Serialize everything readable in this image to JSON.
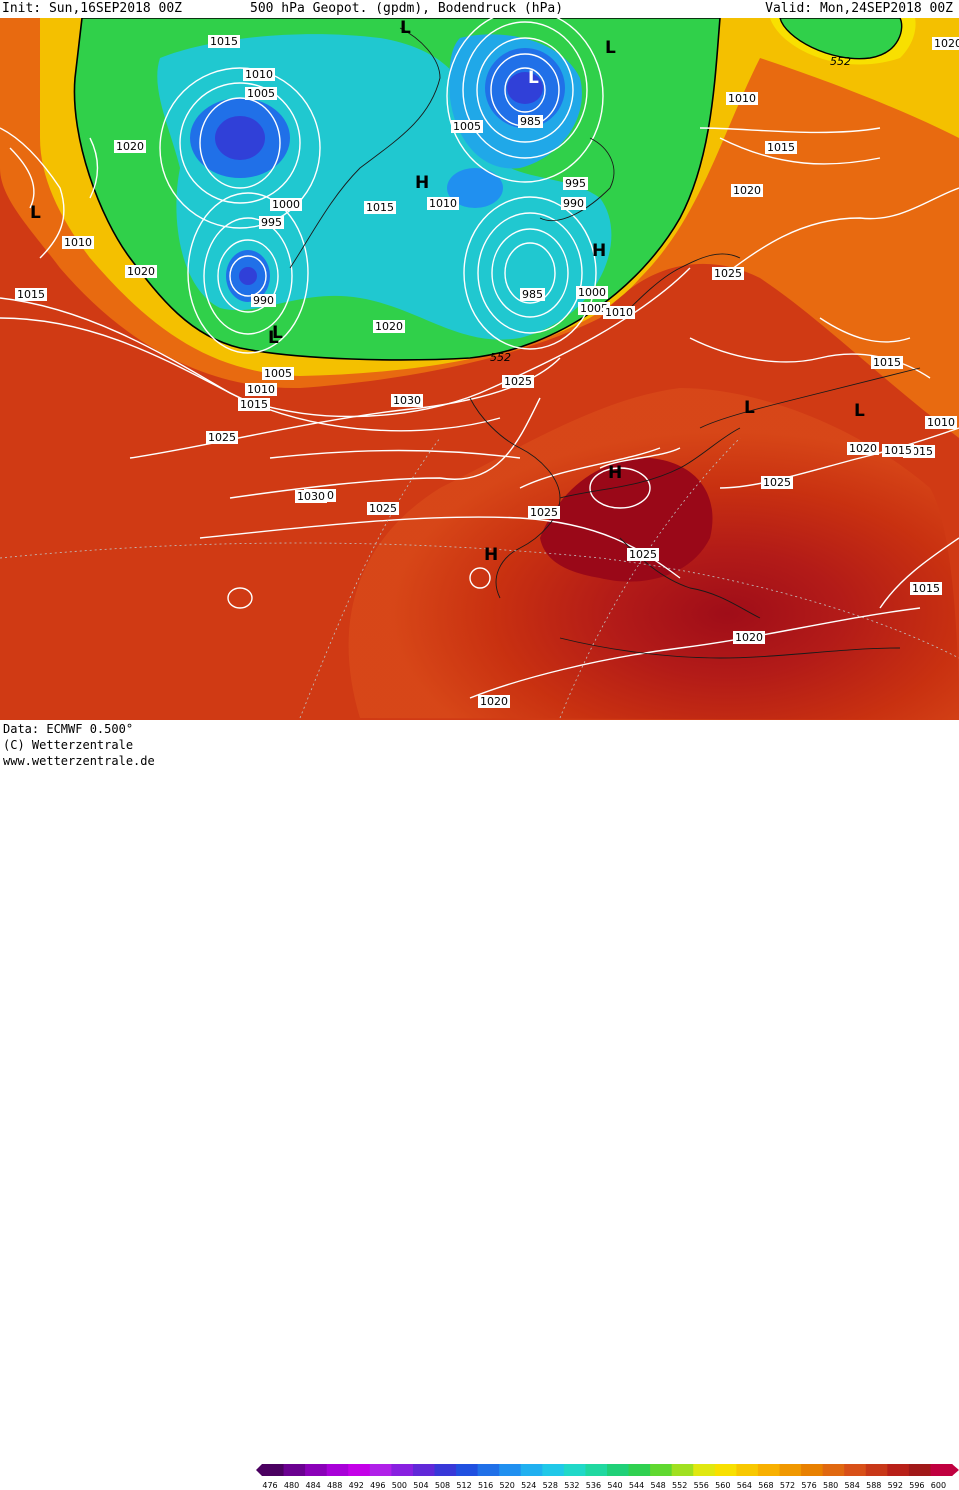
{
  "header": {
    "init": "Init: Sun,16SEP2018 00Z",
    "title": "500 hPa Geopot. (gpdm), Bodendruck (hPa)",
    "valid": "Valid: Mon,24SEP2018 00Z"
  },
  "footer": {
    "data": "Data: ECMWF  0.500°",
    "copyright": "(C) Wetterzentrale",
    "url": "www.wetterzentrale.de"
  },
  "colorbar": {
    "ticks": [
      "476",
      "480",
      "484",
      "488",
      "492",
      "496",
      "500",
      "504",
      "508",
      "512",
      "516",
      "520",
      "524",
      "528",
      "532",
      "536",
      "540",
      "544",
      "548",
      "552",
      "556",
      "560",
      "564",
      "568",
      "572",
      "576",
      "580",
      "584",
      "588",
      "592",
      "596",
      "600"
    ],
    "colors": [
      "#4a0060",
      "#6a0090",
      "#8a00b8",
      "#a800d8",
      "#c400e8",
      "#b020e8",
      "#8820e0",
      "#6028d8",
      "#3838d8",
      "#2050e0",
      "#2070e8",
      "#2090f0",
      "#20b0f0",
      "#20c8e8",
      "#20d8c8",
      "#20d8a0",
      "#20d078",
      "#30d050",
      "#60d830",
      "#a0e020",
      "#e0e810",
      "#f8e000",
      "#f8c800",
      "#f8b000",
      "#f09800",
      "#e88000",
      "#e06810",
      "#d85018",
      "#c83818",
      "#b82018",
      "#a01818",
      "#c00040"
    ]
  },
  "map": {
    "isobar_labels": [
      "1015",
      "1010",
      "1005",
      "1000",
      "995",
      "990",
      "985",
      "1020",
      "1025",
      "1030",
      "995",
      "990",
      "985",
      "1005",
      "1010",
      "1015",
      "1020",
      "1025",
      "1030",
      "1025",
      "1020",
      "1015",
      "1010",
      "1015",
      "1020",
      "1025",
      "1015",
      "1010",
      "1020",
      "1015",
      "1005",
      "1010",
      "1015",
      "1025",
      "1000",
      "1005",
      "1010",
      "1015",
      "1020",
      "1025",
      "1030",
      "1025",
      "1020",
      "1015",
      "1010",
      "1020"
    ],
    "pressure_centers": [
      "L",
      "L",
      "L",
      "H",
      "L",
      "H",
      "L",
      "L",
      "L",
      "H",
      "H",
      "L"
    ],
    "geopot_labels": [
      "552",
      "552"
    ]
  }
}
